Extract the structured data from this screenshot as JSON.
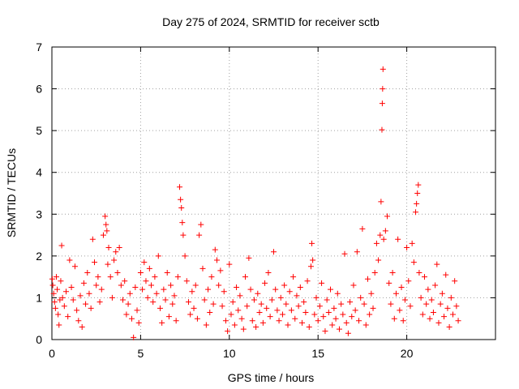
{
  "chart_data": {
    "type": "scatter",
    "title": "Day 275 of 2024, SRMTID for receiver sctb",
    "xlabel": "GPS time / hours",
    "ylabel": "SRMTID / TECUs",
    "xlim": [
      0,
      25
    ],
    "ylim": [
      0,
      7
    ],
    "xticks": [
      0,
      5,
      10,
      15,
      20
    ],
    "yticks": [
      0,
      1,
      2,
      3,
      4,
      5,
      6,
      7
    ],
    "grid": true,
    "marker": "+",
    "series_color": "#ff0000",
    "series": [
      {
        "name": "SRMTID",
        "points": [
          [
            0.02,
            1.45
          ],
          [
            0.05,
            1.3
          ],
          [
            0.1,
            1.1
          ],
          [
            0.15,
            0.9
          ],
          [
            0.2,
            0.75
          ],
          [
            0.25,
            1.5
          ],
          [
            0.3,
            1.2
          ],
          [
            0.35,
            0.6
          ],
          [
            0.4,
            0.35
          ],
          [
            0.45,
            0.95
          ],
          [
            0.5,
            1.4
          ],
          [
            0.55,
            2.25
          ],
          [
            0.6,
            1.0
          ],
          [
            0.7,
            0.8
          ],
          [
            0.8,
            1.15
          ],
          [
            0.9,
            0.55
          ],
          [
            1.0,
            1.9
          ],
          [
            1.1,
            1.25
          ],
          [
            1.2,
            0.95
          ],
          [
            1.3,
            1.75
          ],
          [
            1.4,
            0.7
          ],
          [
            1.5,
            0.45
          ],
          [
            1.6,
            1.05
          ],
          [
            1.7,
            0.3
          ],
          [
            1.8,
            1.35
          ],
          [
            1.9,
            0.85
          ],
          [
            2.0,
            1.6
          ],
          [
            2.1,
            1.1
          ],
          [
            2.2,
            0.75
          ],
          [
            2.3,
            2.4
          ],
          [
            2.4,
            1.85
          ],
          [
            2.5,
            1.3
          ],
          [
            2.6,
            1.5
          ],
          [
            2.7,
            0.9
          ],
          [
            2.8,
            1.2
          ],
          [
            2.9,
            2.5
          ],
          [
            3.0,
            2.95
          ],
          [
            3.05,
            2.75
          ],
          [
            3.1,
            2.6
          ],
          [
            3.15,
            1.8
          ],
          [
            3.2,
            2.2
          ],
          [
            3.3,
            1.5
          ],
          [
            3.4,
            1.0
          ],
          [
            3.5,
            1.9
          ],
          [
            3.6,
            2.1
          ],
          [
            3.7,
            1.6
          ],
          [
            3.8,
            2.2
          ],
          [
            3.9,
            1.3
          ],
          [
            4.0,
            0.95
          ],
          [
            4.1,
            1.4
          ],
          [
            4.2,
            0.6
          ],
          [
            4.3,
            0.85
          ],
          [
            4.4,
            1.1
          ],
          [
            4.5,
            0.5
          ],
          [
            4.6,
            0.05
          ],
          [
            4.7,
            1.25
          ],
          [
            4.8,
            0.7
          ],
          [
            4.9,
            0.4
          ],
          [
            5.0,
            1.6
          ],
          [
            5.1,
            1.2
          ],
          [
            5.2,
            1.85
          ],
          [
            5.3,
            1.4
          ],
          [
            5.4,
            1.0
          ],
          [
            5.5,
            1.7
          ],
          [
            5.6,
            1.3
          ],
          [
            5.7,
            0.9
          ],
          [
            5.8,
            1.5
          ],
          [
            5.9,
            1.1
          ],
          [
            6.0,
            2.0
          ],
          [
            6.1,
            0.75
          ],
          [
            6.2,
            0.4
          ],
          [
            6.3,
            1.2
          ],
          [
            6.4,
            0.95
          ],
          [
            6.5,
            1.6
          ],
          [
            6.6,
            0.55
          ],
          [
            6.7,
            1.3
          ],
          [
            6.8,
            0.85
          ],
          [
            6.9,
            1.05
          ],
          [
            7.0,
            0.45
          ],
          [
            7.1,
            1.5
          ],
          [
            7.2,
            3.65
          ],
          [
            7.25,
            3.35
          ],
          [
            7.3,
            3.15
          ],
          [
            7.35,
            2.8
          ],
          [
            7.4,
            2.5
          ],
          [
            7.5,
            2.0
          ],
          [
            7.6,
            1.4
          ],
          [
            7.7,
            0.9
          ],
          [
            7.8,
            0.6
          ],
          [
            7.9,
            1.15
          ],
          [
            8.0,
            0.75
          ],
          [
            8.1,
            1.3
          ],
          [
            8.2,
            0.5
          ],
          [
            8.3,
            2.5
          ],
          [
            8.4,
            2.75
          ],
          [
            8.5,
            1.7
          ],
          [
            8.6,
            0.95
          ],
          [
            8.7,
            0.35
          ],
          [
            8.8,
            1.2
          ],
          [
            8.9,
            0.65
          ],
          [
            9.0,
            1.5
          ],
          [
            9.1,
            0.85
          ],
          [
            9.2,
            2.15
          ],
          [
            9.3,
            1.9
          ],
          [
            9.4,
            1.3
          ],
          [
            9.5,
            1.65
          ],
          [
            9.6,
            0.8
          ],
          [
            9.7,
            1.15
          ],
          [
            9.8,
            0.45
          ],
          [
            9.9,
            0.2
          ],
          [
            10.0,
            1.8
          ],
          [
            10.1,
            0.6
          ],
          [
            10.2,
            0.9
          ],
          [
            10.3,
            0.35
          ],
          [
            10.4,
            1.25
          ],
          [
            10.5,
            0.7
          ],
          [
            10.6,
            1.05
          ],
          [
            10.7,
            0.5
          ],
          [
            10.8,
            0.25
          ],
          [
            10.9,
            1.5
          ],
          [
            11.0,
            0.8
          ],
          [
            11.1,
            1.95
          ],
          [
            11.2,
            1.2
          ],
          [
            11.3,
            0.45
          ],
          [
            11.4,
            0.95
          ],
          [
            11.5,
            0.3
          ],
          [
            11.6,
            1.1
          ],
          [
            11.7,
            0.65
          ],
          [
            11.8,
            0.85
          ],
          [
            11.9,
            0.4
          ],
          [
            12.0,
            1.35
          ],
          [
            12.1,
            0.75
          ],
          [
            12.2,
            1.6
          ],
          [
            12.3,
            0.55
          ],
          [
            12.4,
            0.95
          ],
          [
            12.5,
            2.1
          ],
          [
            12.6,
            1.2
          ],
          [
            12.7,
            0.7
          ],
          [
            12.8,
            0.45
          ],
          [
            12.9,
            1.0
          ],
          [
            13.0,
            0.6
          ],
          [
            13.1,
            1.3
          ],
          [
            13.2,
            0.85
          ],
          [
            13.3,
            0.35
          ],
          [
            13.4,
            1.15
          ],
          [
            13.5,
            0.7
          ],
          [
            13.6,
            1.5
          ],
          [
            13.7,
            0.5
          ],
          [
            13.8,
            1.05
          ],
          [
            13.9,
            0.8
          ],
          [
            14.0,
            1.25
          ],
          [
            14.1,
            0.4
          ],
          [
            14.2,
            0.9
          ],
          [
            14.3,
            0.65
          ],
          [
            14.4,
            1.4
          ],
          [
            14.5,
            0.3
          ],
          [
            14.6,
            1.75
          ],
          [
            14.65,
            2.3
          ],
          [
            14.7,
            1.9
          ],
          [
            14.8,
            0.6
          ],
          [
            14.9,
            1.0
          ],
          [
            15.0,
            0.45
          ],
          [
            15.1,
            0.8
          ],
          [
            15.2,
            1.35
          ],
          [
            15.3,
            0.55
          ],
          [
            15.4,
            0.2
          ],
          [
            15.5,
            0.95
          ],
          [
            15.6,
            0.65
          ],
          [
            15.7,
            1.2
          ],
          [
            15.8,
            0.35
          ],
          [
            15.9,
            0.75
          ],
          [
            16.0,
            0.5
          ],
          [
            16.1,
            1.1
          ],
          [
            16.2,
            0.25
          ],
          [
            16.3,
            0.85
          ],
          [
            16.4,
            0.6
          ],
          [
            16.5,
            2.05
          ],
          [
            16.6,
            0.4
          ],
          [
            16.7,
            0.15
          ],
          [
            16.8,
            0.9
          ],
          [
            16.9,
            0.55
          ],
          [
            17.0,
            1.3
          ],
          [
            17.1,
            0.7
          ],
          [
            17.2,
            2.1
          ],
          [
            17.3,
            0.45
          ],
          [
            17.4,
            1.0
          ],
          [
            17.5,
            2.65
          ],
          [
            17.6,
            0.85
          ],
          [
            17.7,
            0.35
          ],
          [
            17.8,
            1.45
          ],
          [
            17.9,
            0.6
          ],
          [
            18.0,
            1.1
          ],
          [
            18.1,
            0.75
          ],
          [
            18.2,
            1.6
          ],
          [
            18.3,
            2.3
          ],
          [
            18.4,
            1.9
          ],
          [
            18.5,
            2.5
          ],
          [
            18.55,
            3.3
          ],
          [
            18.6,
            5.02
          ],
          [
            18.62,
            5.65
          ],
          [
            18.64,
            6.0
          ],
          [
            18.66,
            6.47
          ],
          [
            18.7,
            2.4
          ],
          [
            18.8,
            2.6
          ],
          [
            18.9,
            2.95
          ],
          [
            19.0,
            1.35
          ],
          [
            19.1,
            0.85
          ],
          [
            19.2,
            1.6
          ],
          [
            19.3,
            0.5
          ],
          [
            19.4,
            1.1
          ],
          [
            19.5,
            2.4
          ],
          [
            19.6,
            0.7
          ],
          [
            19.7,
            1.25
          ],
          [
            19.8,
            0.45
          ],
          [
            19.9,
            0.95
          ],
          [
            20.0,
            2.2
          ],
          [
            20.1,
            1.4
          ],
          [
            20.2,
            0.8
          ],
          [
            20.3,
            2.3
          ],
          [
            20.4,
            1.85
          ],
          [
            20.5,
            3.05
          ],
          [
            20.55,
            3.25
          ],
          [
            20.6,
            3.5
          ],
          [
            20.65,
            3.7
          ],
          [
            20.7,
            1.6
          ],
          [
            20.8,
            1.0
          ],
          [
            20.9,
            0.6
          ],
          [
            21.0,
            1.5
          ],
          [
            21.1,
            0.85
          ],
          [
            21.2,
            1.2
          ],
          [
            21.3,
            0.5
          ],
          [
            21.4,
            0.95
          ],
          [
            21.5,
            0.65
          ],
          [
            21.6,
            1.3
          ],
          [
            21.7,
            1.8
          ],
          [
            21.8,
            0.4
          ],
          [
            21.9,
            0.85
          ],
          [
            22.0,
            1.1
          ],
          [
            22.1,
            0.55
          ],
          [
            22.2,
            1.55
          ],
          [
            22.3,
            0.75
          ],
          [
            22.4,
            0.3
          ],
          [
            22.5,
            1.0
          ],
          [
            22.6,
            0.6
          ],
          [
            22.7,
            1.4
          ],
          [
            22.8,
            0.8
          ],
          [
            22.9,
            0.45
          ]
        ]
      }
    ]
  }
}
